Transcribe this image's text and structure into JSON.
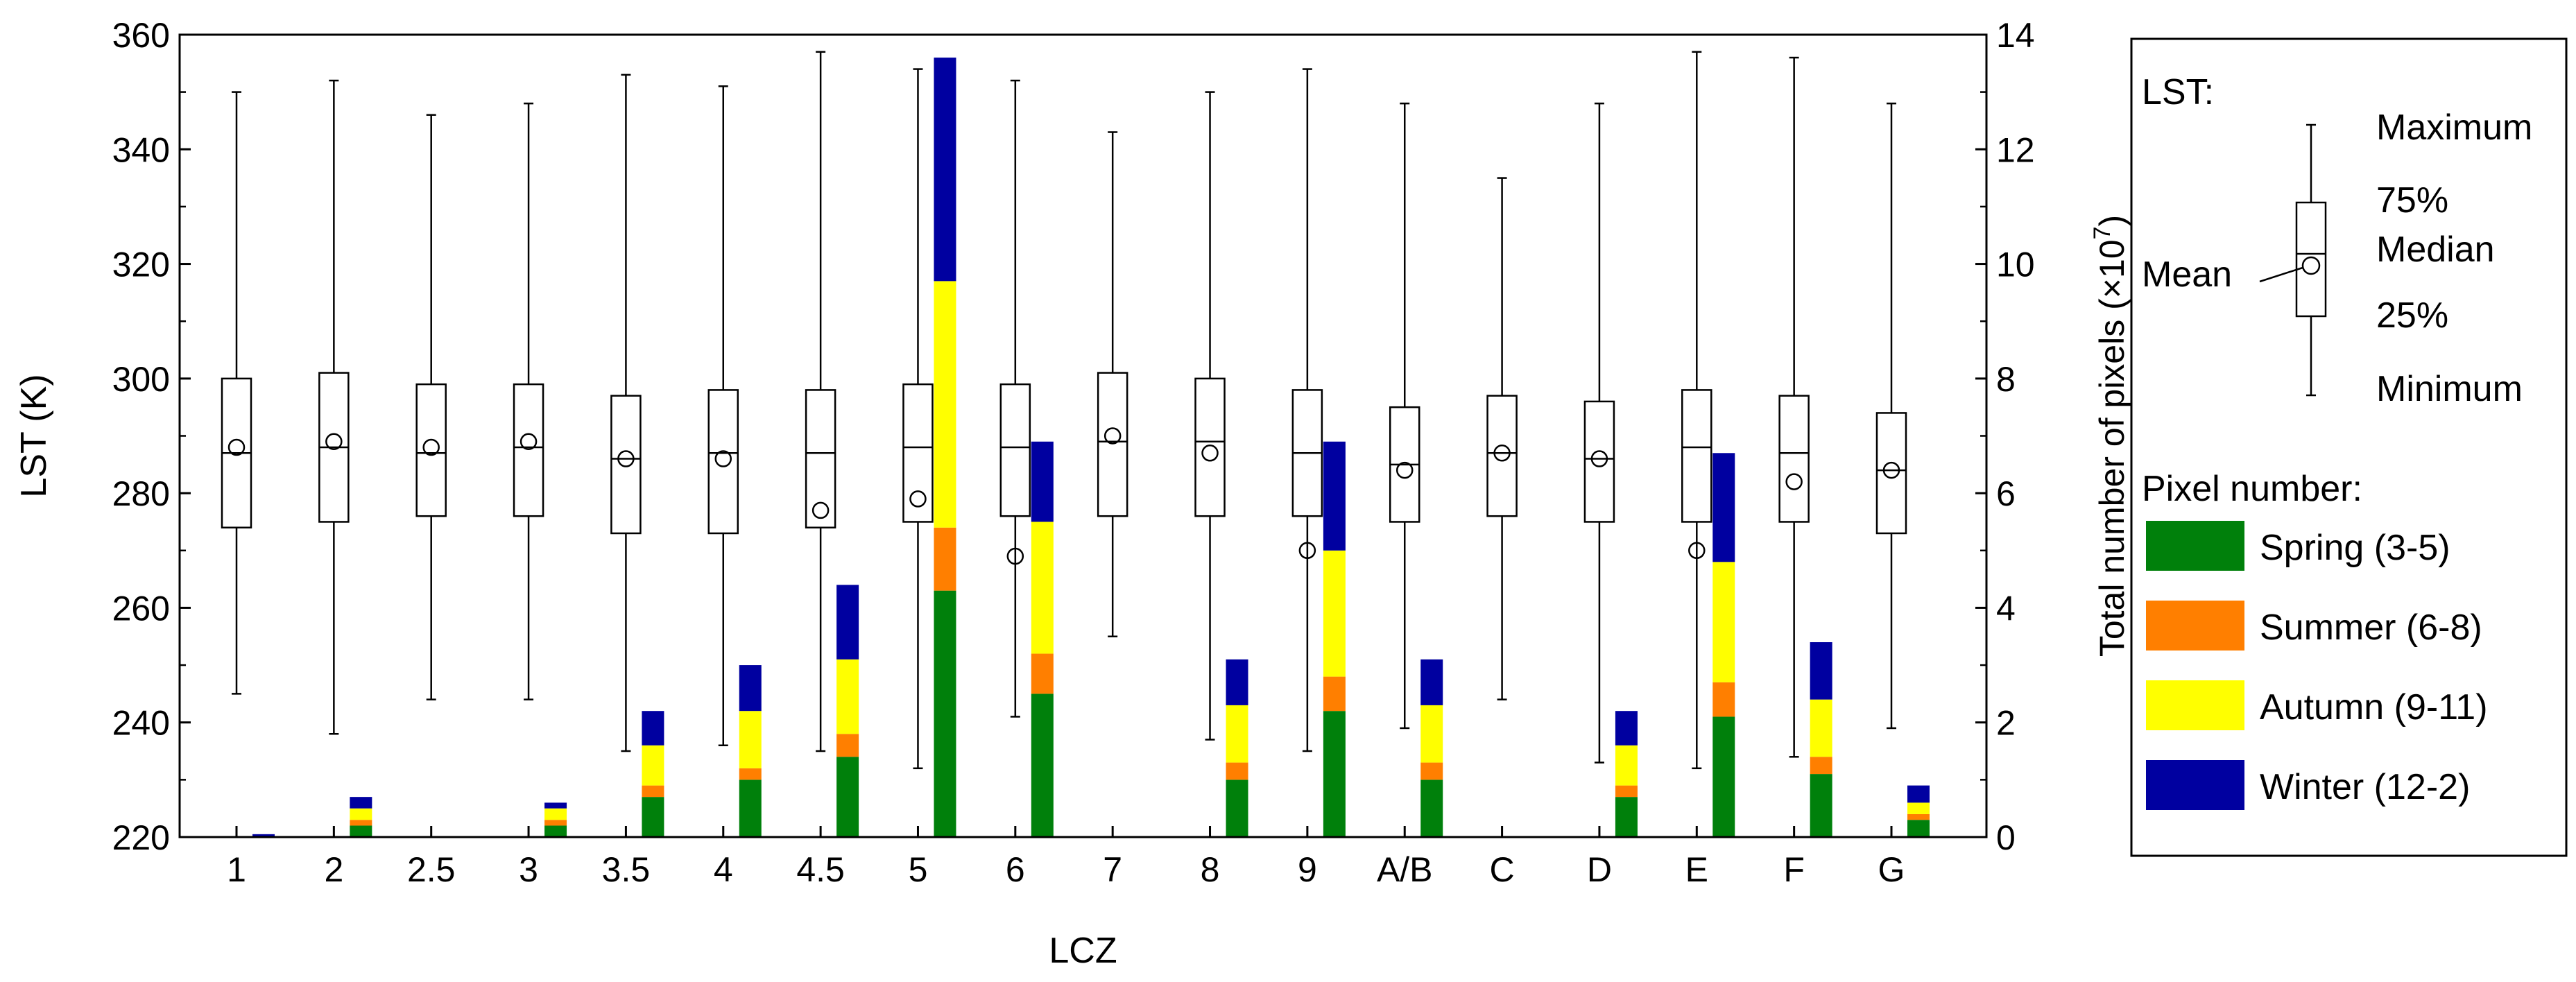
{
  "chart_data": {
    "type": "box+stacked-bar",
    "xlabel": "LCZ",
    "ylabel_left": "LST (K)",
    "ylabel_right": "Total number of pixels (×10",
    "ylabel_right_exp": "7",
    "ylabel_right_tail": ")",
    "ylim_left": [
      220,
      360
    ],
    "yticks_left": [
      220,
      240,
      260,
      280,
      300,
      320,
      340,
      360
    ],
    "ylim_right": [
      0,
      14
    ],
    "yticks_right": [
      0,
      2,
      4,
      6,
      8,
      10,
      12,
      14
    ],
    "categories": [
      "1",
      "2",
      "2.5",
      "3",
      "3.5",
      "4",
      "4.5",
      "5",
      "6",
      "7",
      "8",
      "9",
      "A/B",
      "C",
      "D",
      "E",
      "F",
      "G"
    ],
    "boxes": [
      {
        "category": "1",
        "min": 245,
        "q1": 274,
        "median": 287,
        "q3": 300,
        "max": 350,
        "mean": 288
      },
      {
        "category": "2",
        "min": 238,
        "q1": 275,
        "median": 288,
        "q3": 301,
        "max": 352,
        "mean": 289
      },
      {
        "category": "2.5",
        "min": 244,
        "q1": 276,
        "median": 287,
        "q3": 299,
        "max": 346,
        "mean": 288
      },
      {
        "category": "3",
        "min": 244,
        "q1": 276,
        "median": 288,
        "q3": 299,
        "max": 348,
        "mean": 289
      },
      {
        "category": "3.5",
        "min": 235,
        "q1": 273,
        "median": 286,
        "q3": 297,
        "max": 353,
        "mean": 286
      },
      {
        "category": "4",
        "min": 236,
        "q1": 273,
        "median": 287,
        "q3": 298,
        "max": 351,
        "mean": 286
      },
      {
        "category": "4.5",
        "min": 235,
        "q1": 274,
        "median": 287,
        "q3": 298,
        "max": 357,
        "mean": 277
      },
      {
        "category": "5",
        "min": 232,
        "q1": 275,
        "median": 288,
        "q3": 299,
        "max": 354,
        "mean": 279
      },
      {
        "category": "6",
        "min": 241,
        "q1": 276,
        "median": 288,
        "q3": 299,
        "max": 352,
        "mean": 269
      },
      {
        "category": "7",
        "min": 255,
        "q1": 276,
        "median": 289,
        "q3": 301,
        "max": 343,
        "mean": 290
      },
      {
        "category": "8",
        "min": 237,
        "q1": 276,
        "median": 289,
        "q3": 300,
        "max": 350,
        "mean": 287
      },
      {
        "category": "9",
        "min": 235,
        "q1": 276,
        "median": 287,
        "q3": 298,
        "max": 354,
        "mean": 270
      },
      {
        "category": "A/B",
        "min": 239,
        "q1": 275,
        "median": 285,
        "q3": 295,
        "max": 348,
        "mean": 284
      },
      {
        "category": "C",
        "min": 244,
        "q1": 276,
        "median": 287,
        "q3": 297,
        "max": 335,
        "mean": 287
      },
      {
        "category": "D",
        "min": 233,
        "q1": 275,
        "median": 286,
        "q3": 296,
        "max": 348,
        "mean": 286
      },
      {
        "category": "E",
        "min": 232,
        "q1": 275,
        "median": 288,
        "q3": 298,
        "max": 357,
        "mean": 270
      },
      {
        "category": "F",
        "min": 234,
        "q1": 275,
        "median": 287,
        "q3": 297,
        "max": 356,
        "mean": 282
      },
      {
        "category": "G",
        "min": 239,
        "q1": 273,
        "median": 284,
        "q3": 294,
        "max": 348,
        "mean": 284
      }
    ],
    "pixel_series": [
      {
        "name": "Spring (3-5)",
        "color": "#00800b",
        "values": [
          0,
          0.2,
          0,
          0.2,
          0.7,
          1.0,
          1.4,
          4.3,
          2.5,
          0,
          1.0,
          2.2,
          1.0,
          0,
          0.7,
          2.1,
          1.1,
          0.3
        ]
      },
      {
        "name": "Summer (6-8)",
        "color": "#ff7f00",
        "values": [
          0,
          0.1,
          0,
          0.1,
          0.2,
          0.2,
          0.4,
          1.1,
          0.7,
          0,
          0.3,
          0.6,
          0.3,
          0,
          0.2,
          0.6,
          0.3,
          0.1
        ]
      },
      {
        "name": "Autumn (9-11)",
        "color": "#ffff00",
        "values": [
          0,
          0.2,
          0,
          0.2,
          0.7,
          1.0,
          1.3,
          4.3,
          2.3,
          0,
          1.0,
          2.2,
          1.0,
          0,
          0.7,
          2.1,
          1.0,
          0.2
        ]
      },
      {
        "name": "Winter (12-2)",
        "color": "#0000a0",
        "values": [
          0.05,
          0.2,
          0,
          0.1,
          0.6,
          0.8,
          1.3,
          3.9,
          1.4,
          0,
          0.8,
          1.9,
          0.8,
          0,
          0.6,
          1.9,
          1.0,
          0.3
        ]
      }
    ],
    "legend": {
      "lst_title": "LST:",
      "maximum": "Maximum",
      "p75": "75%",
      "median": "Median",
      "mean": "Mean",
      "p25": "25%",
      "minimum": "Minimum",
      "pixel_title": "Pixel number:",
      "placement": "right"
    }
  }
}
